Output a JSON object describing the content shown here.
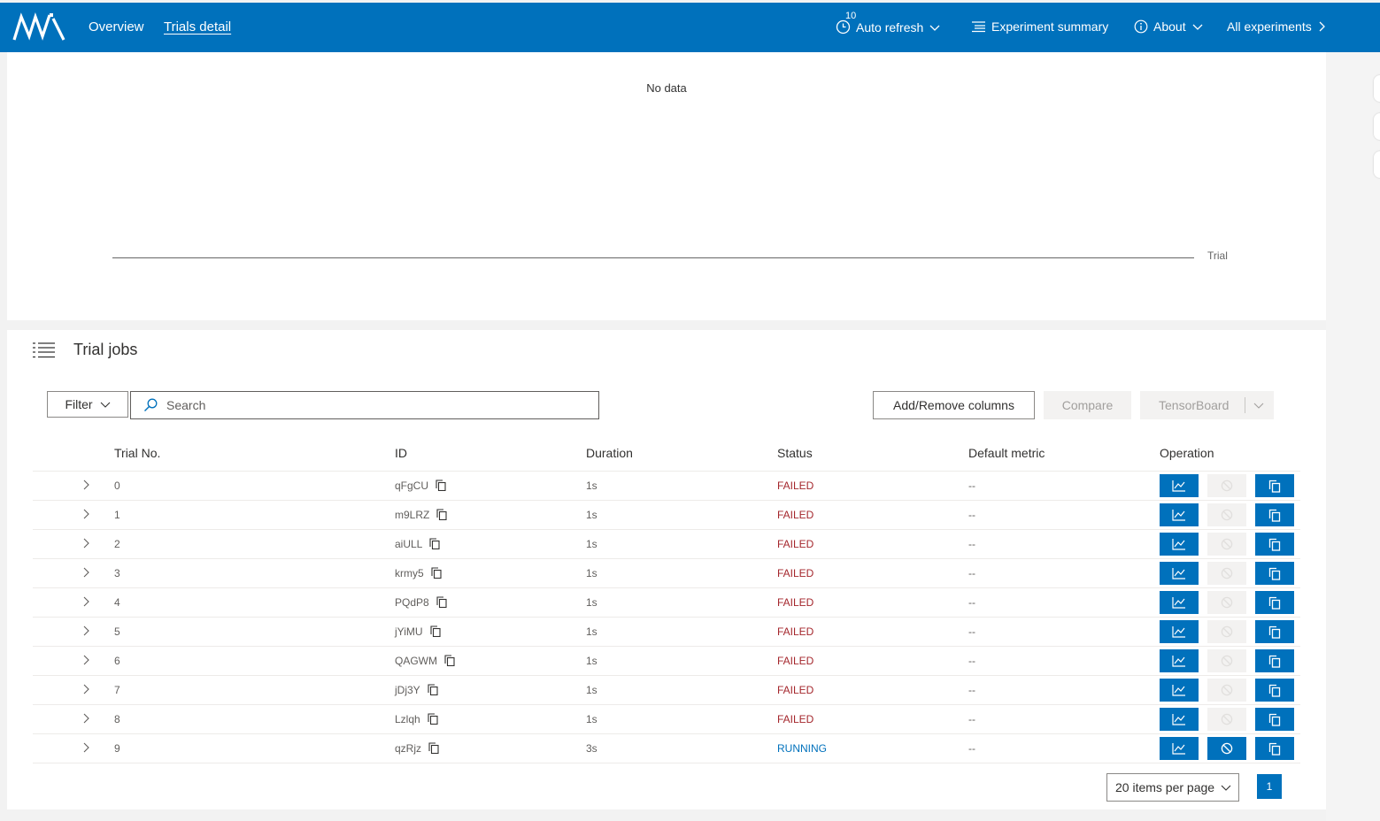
{
  "header": {
    "nav": [
      {
        "label": "Overview"
      },
      {
        "label": "Trials detail"
      }
    ],
    "refresh_interval": "10",
    "auto_refresh_label": "Auto refresh",
    "experiment_summary_label": "Experiment summary",
    "about_label": "About",
    "all_experiments_label": "All experiments",
    "brand_color": "#0071bc"
  },
  "chart_data": {
    "type": "scatter",
    "message": "No data",
    "xlabel": "Trial",
    "series": []
  },
  "trials": {
    "title": "Trial jobs",
    "filter_label": "Filter",
    "search_placeholder": "Search",
    "add_remove_label": "Add/Remove columns",
    "compare_label": "Compare",
    "tensorboard_label": "TensorBoard",
    "columns": [
      "Trial No.",
      "ID",
      "Duration",
      "Status",
      "Default metric",
      "Operation"
    ],
    "rows": [
      {
        "no": "0",
        "id": "qFgCU",
        "duration": "1s",
        "status": "FAILED",
        "metric": "--"
      },
      {
        "no": "1",
        "id": "m9LRZ",
        "duration": "1s",
        "status": "FAILED",
        "metric": "--"
      },
      {
        "no": "2",
        "id": "aiULL",
        "duration": "1s",
        "status": "FAILED",
        "metric": "--"
      },
      {
        "no": "3",
        "id": "krmy5",
        "duration": "1s",
        "status": "FAILED",
        "metric": "--"
      },
      {
        "no": "4",
        "id": "PQdP8",
        "duration": "1s",
        "status": "FAILED",
        "metric": "--"
      },
      {
        "no": "5",
        "id": "jYiMU",
        "duration": "1s",
        "status": "FAILED",
        "metric": "--"
      },
      {
        "no": "6",
        "id": "QAGWM",
        "duration": "1s",
        "status": "FAILED",
        "metric": "--"
      },
      {
        "no": "7",
        "id": "jDj3Y",
        "duration": "1s",
        "status": "FAILED",
        "metric": "--"
      },
      {
        "no": "8",
        "id": "Lzlqh",
        "duration": "1s",
        "status": "FAILED",
        "metric": "--"
      },
      {
        "no": "9",
        "id": "qzRjz",
        "duration": "3s",
        "status": "RUNNING",
        "metric": "--"
      }
    ],
    "status_colors": {
      "FAILED": "#a4262c",
      "RUNNING": "#0071bc"
    },
    "pagination": {
      "items_per_page": "20 items per page",
      "current_page": "1"
    }
  }
}
